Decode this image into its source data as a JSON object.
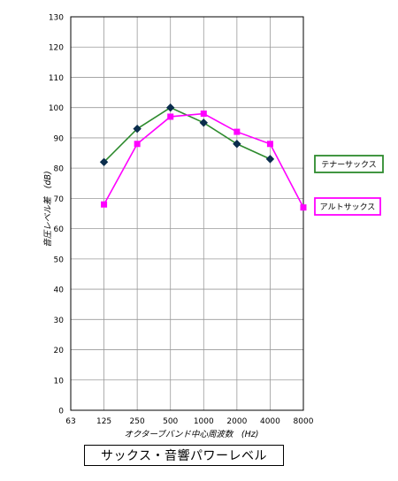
{
  "chart_data": {
    "type": "line",
    "x_categories": [
      "63",
      "125",
      "250",
      "500",
      "1000",
      "2000",
      "4000",
      "8000"
    ],
    "xlabel": "オクターブバンド中心周波数　(Hz)",
    "ylabel": "音圧レベル差　(dB)",
    "ylim": [
      0,
      130
    ],
    "y_ticks": [
      0,
      10,
      20,
      30,
      40,
      50,
      60,
      70,
      80,
      90,
      100,
      110,
      120,
      130
    ],
    "grid": true,
    "legend_placement": "right",
    "series": [
      {
        "name": "テナーサックス",
        "color": "#2E8B2E",
        "marker": "diamond",
        "marker_color": "#0B2D4D",
        "x": [
          "125",
          "250",
          "500",
          "1000",
          "2000",
          "4000"
        ],
        "values": [
          82,
          93,
          100,
          95,
          88,
          83
        ]
      },
      {
        "name": "アルトサックス",
        "color": "#FF00FF",
        "marker": "square",
        "marker_color": "#FF00FF",
        "x": [
          "125",
          "250",
          "500",
          "1000",
          "2000",
          "4000",
          "8000"
        ],
        "values": [
          68,
          88,
          97,
          98,
          92,
          88,
          67
        ]
      }
    ]
  },
  "caption": "サックス・音響パワーレベル"
}
